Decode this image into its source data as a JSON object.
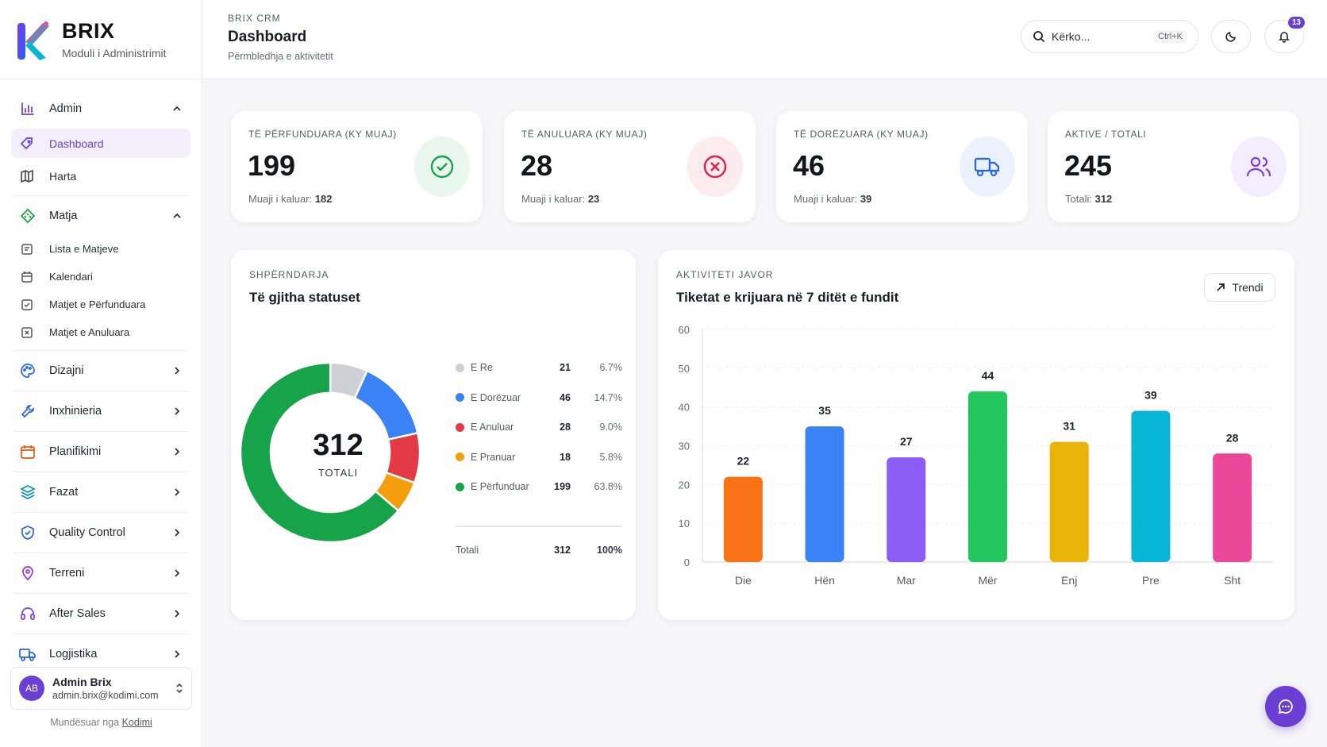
{
  "brand": {
    "name": "BRIX",
    "subtitle": "Moduli i Administrimit"
  },
  "sidebar": {
    "admin_group": "Admin",
    "dashboard": "Dashboard",
    "harta": "Harta",
    "matja_group": "Matja",
    "lista": "Lista e Matjeve",
    "kalendari": "Kalendari",
    "perfunduara": "Matjet e Përfunduara",
    "anuluara": "Matjet e Anuluara",
    "groups": [
      "Dizajni",
      "Inxhinieria",
      "Planifikimi",
      "Fazat",
      "Quality Control",
      "Terreni",
      "After Sales",
      "Logjistika"
    ]
  },
  "user": {
    "initials": "AB",
    "name": "Admin Brix",
    "email": "admin.brix@kodimi.com"
  },
  "footer": {
    "powered_prefix": "Mundësuar nga",
    "powered_link": "Kodimi"
  },
  "header": {
    "crumb": "BRIX CRM",
    "title": "Dashboard",
    "subtitle": "Përmbledhja e aktivitetit",
    "search_placeholder": "Kërko...",
    "search_shortcut": "Ctrl+K",
    "notifications": "13"
  },
  "stats": [
    {
      "label": "TË PËRFUNDUARA (KY MUAJ)",
      "value": "199",
      "foot_prefix": "Muaji i kaluar:",
      "foot_value": "182",
      "color": "#16a34a",
      "bg": "#e9f7ee"
    },
    {
      "label": "TË ANULUARA (KY MUAJ)",
      "value": "28",
      "foot_prefix": "Muaji i kaluar:",
      "foot_value": "23",
      "color": "#e11d48",
      "bg": "#fdecef"
    },
    {
      "label": "TË DORËZUARA (KY MUAJ)",
      "value": "46",
      "foot_prefix": "Muaji i kaluar:",
      "foot_value": "39",
      "color": "#2563eb",
      "bg": "#ebf2fe"
    },
    {
      "label": "AKTIVE / TOTALI",
      "value": "245",
      "foot_prefix": "Totali:",
      "foot_value": "312",
      "color": "#7c3aed",
      "bg": "#f3eefd"
    }
  ],
  "distribution": {
    "kicker": "SHPËRNDARJA",
    "title": "Të gjitha statuset",
    "center_value": "312",
    "center_label": "TOTALI",
    "total_label": "Totali",
    "total_count": "312",
    "total_pct": "100%"
  },
  "weekly": {
    "kicker": "AKTIVITETI JAVOR",
    "title": "Tiketat e krijuara në 7 ditët e fundit",
    "trend_label": "Trendi"
  },
  "chart_data": [
    {
      "type": "pie",
      "categories": [
        "E Re",
        "E Dorëzuar",
        "E Anuluar",
        "E Pranuar",
        "E Përfunduar"
      ],
      "values": [
        21,
        46,
        28,
        18,
        199
      ],
      "percents": [
        "6.7%",
        "14.7%",
        "9.0%",
        "5.8%",
        "63.8%"
      ],
      "colors": [
        "#cfcfd6",
        "#3b82f6",
        "#e23b45",
        "#f59e0b",
        "#16a34a"
      ],
      "title": "Të gjitha statuset"
    },
    {
      "type": "bar",
      "categories": [
        "Die",
        "Hën",
        "Mar",
        "Mër",
        "Enj",
        "Pre",
        "Sht"
      ],
      "values": [
        22,
        35,
        27,
        44,
        31,
        39,
        28
      ],
      "colors": [
        "#f97316",
        "#3b82f6",
        "#8b5cf6",
        "#22c55e",
        "#eab308",
        "#06b6d4",
        "#ec4899"
      ],
      "yticks": [
        "0",
        "10",
        "20",
        "30",
        "40",
        "50",
        "60"
      ],
      "ylim": [
        0,
        60
      ],
      "title": "Tiketat e krijuara në 7 ditët e fundit"
    }
  ]
}
